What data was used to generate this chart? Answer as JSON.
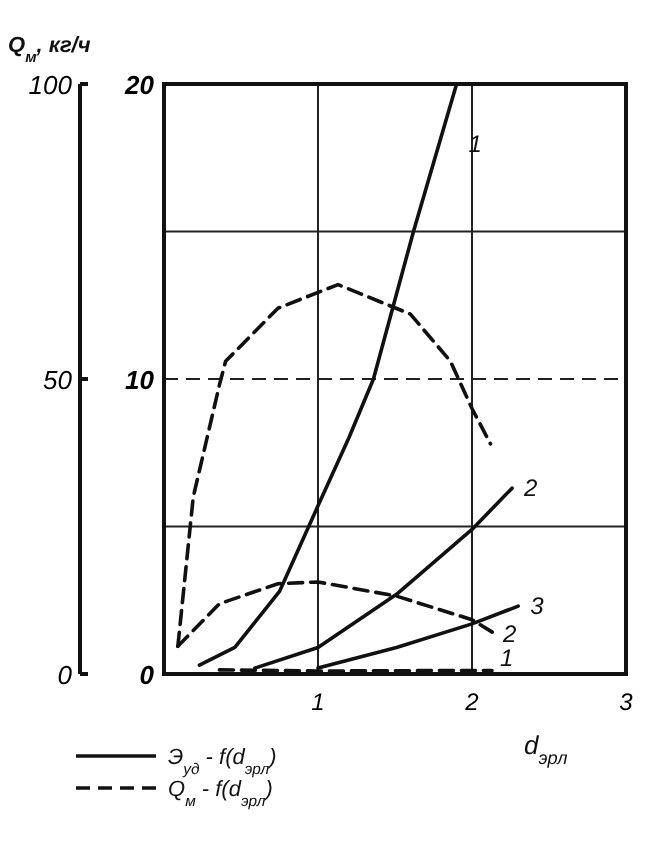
{
  "chart_data": {
    "type": "line",
    "xlabel": "d$_{эрл}$",
    "y2label": "Q$_{м}$, кг/ч",
    "xlim": [
      0,
      3
    ],
    "xticks": [
      1,
      2,
      3
    ],
    "ylim": [
      0,
      20
    ],
    "yticks": [
      0,
      {
        "value": 5,
        "label": null
      },
      10,
      {
        "value": 15,
        "label": null
      },
      20
    ],
    "y2lim": [
      0,
      100
    ],
    "y2ticks": [
      0,
      50,
      100
    ],
    "grid": true,
    "ref_lines": [
      {
        "axis": "y",
        "value": 10,
        "line_style": "dashed"
      }
    ],
    "series": [
      {
        "name": "1",
        "color": "#111111",
        "line_style": "solid",
        "x": [
          0.23,
          0.46,
          0.75,
          1.0,
          1.2,
          1.36,
          1.62,
          1.9
        ],
        "values": [
          0.3,
          0.9,
          2.8,
          5.7,
          8,
          10,
          15,
          20
        ]
      },
      {
        "name": "2",
        "color": "#111111",
        "line_style": "solid",
        "x": [
          0.59,
          1.0,
          1.51,
          2.0,
          2.26
        ],
        "values": [
          0.2,
          0.9,
          2.7,
          4.9,
          6.3
        ]
      },
      {
        "name": "3",
        "color": "#111111",
        "line_style": "solid",
        "x": [
          1.0,
          1.51,
          2.0,
          2.3
        ],
        "values": [
          0.2,
          0.9,
          1.7,
          2.3
        ]
      },
      {
        "color": "#111111",
        "line_style": "dashed",
        "axis": "y2",
        "x": [
          0.09,
          0.19,
          0.36,
          0.4,
          0.74,
          1.13,
          1.6,
          1.86,
          2.0,
          2.12
        ],
        "values": [
          4.7,
          30,
          49,
          53,
          62,
          66,
          61,
          53,
          45,
          39
        ]
      },
      {
        "name": "2",
        "color": "#111111",
        "line_style": "dashed",
        "axis": "y2",
        "x": [
          0.09,
          0.36,
          0.74,
          1.0,
          1.51,
          2.0,
          2.15
        ],
        "values": [
          4.7,
          11.9,
          15.3,
          15.6,
          13.2,
          9.2,
          6.8
        ]
      },
      {
        "name": "1",
        "color": "#111111",
        "line_style": "dashed",
        "axis": "y2",
        "x": [
          0.36,
          1.0,
          2.0,
          2.13
        ],
        "values": [
          0.7,
          0.5,
          0.6,
          0.6
        ]
      }
    ],
    "annotations": [
      "Э$_{уд}$ - f(d$_{эрл}$)",
      "Q$_{м}$ - f(d$_{эрл}$)"
    ]
  }
}
